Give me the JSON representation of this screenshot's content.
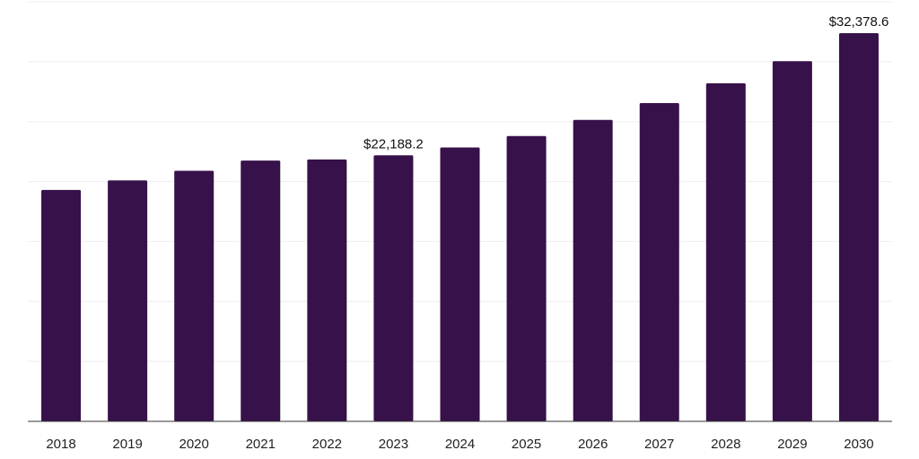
{
  "chart_data": {
    "type": "bar",
    "categories": [
      "2018",
      "2019",
      "2020",
      "2021",
      "2022",
      "2023",
      "2024",
      "2025",
      "2026",
      "2027",
      "2028",
      "2029",
      "2030"
    ],
    "values": [
      19300,
      20100,
      20900,
      21750,
      21850,
      22188.2,
      22850,
      23800,
      25150,
      26550,
      28200,
      30050,
      32378.6
    ],
    "data_labels": [
      {
        "index": 5,
        "text": "$22,188.2"
      },
      {
        "index": 12,
        "text": "$32,378.6"
      }
    ],
    "title": "",
    "xlabel": "",
    "ylabel": "",
    "ylim": [
      0,
      35000
    ],
    "grid": true,
    "legend": "none",
    "colors": {
      "bar": "#37114a",
      "grid": "#eeeeee",
      "axis": "#333333"
    }
  }
}
